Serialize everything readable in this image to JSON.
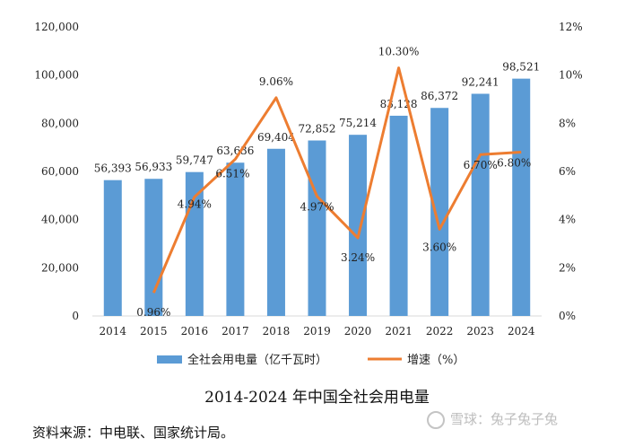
{
  "chart_data": {
    "type": "bar+line",
    "title": "2014-2024年中国全社会用电量",
    "categories": [
      "2014",
      "2015",
      "2016",
      "2017",
      "2018",
      "2019",
      "2020",
      "2021",
      "2022",
      "2023",
      "2024"
    ],
    "series": [
      {
        "name": "全社会用电量（亿千瓦时）",
        "kind": "bar",
        "axis": "left",
        "color": "#5b9bd5",
        "values": [
          56393,
          56933,
          59747,
          63636,
          69404,
          72852,
          75214,
          83128,
          86372,
          92241,
          98521
        ],
        "labels": [
          "56,393",
          "56,933",
          "59,747",
          "63,636",
          "69,404",
          "72,852",
          "75,214",
          "83,128",
          "86,372",
          "92,241",
          "98,521"
        ]
      },
      {
        "name": "增速（%）",
        "kind": "line",
        "axis": "right",
        "color": "#ed7d31",
        "values": [
          null,
          0.96,
          4.94,
          6.51,
          9.06,
          4.97,
          3.24,
          10.3,
          3.6,
          6.7,
          6.8
        ],
        "labels": [
          "",
          "0.96%",
          "4.94%",
          "6.51%",
          "9.06%",
          "4.97%",
          "3.24%",
          "10.30%",
          "3.60%",
          "6.70%",
          "6.80%"
        ]
      }
    ],
    "y_left": {
      "min": 0,
      "max": 120000,
      "step": 20000,
      "ticks": [
        "0",
        "20,000",
        "40,000",
        "60,000",
        "80,000",
        "100,000",
        "120,000"
      ]
    },
    "y_right": {
      "min": 0,
      "max": 12,
      "step": 2,
      "ticks": [
        "0%",
        "2%",
        "4%",
        "6%",
        "8%",
        "10%",
        "12%"
      ]
    },
    "grid": false,
    "legend_position": "bottom"
  },
  "caption": "2014-2024 年中国全社会用电量",
  "source": "资料来源：中电联、国家统计局。",
  "watermark": "雪球：兔子兔子兔",
  "watermark_icon": "snowball-logo-icon"
}
